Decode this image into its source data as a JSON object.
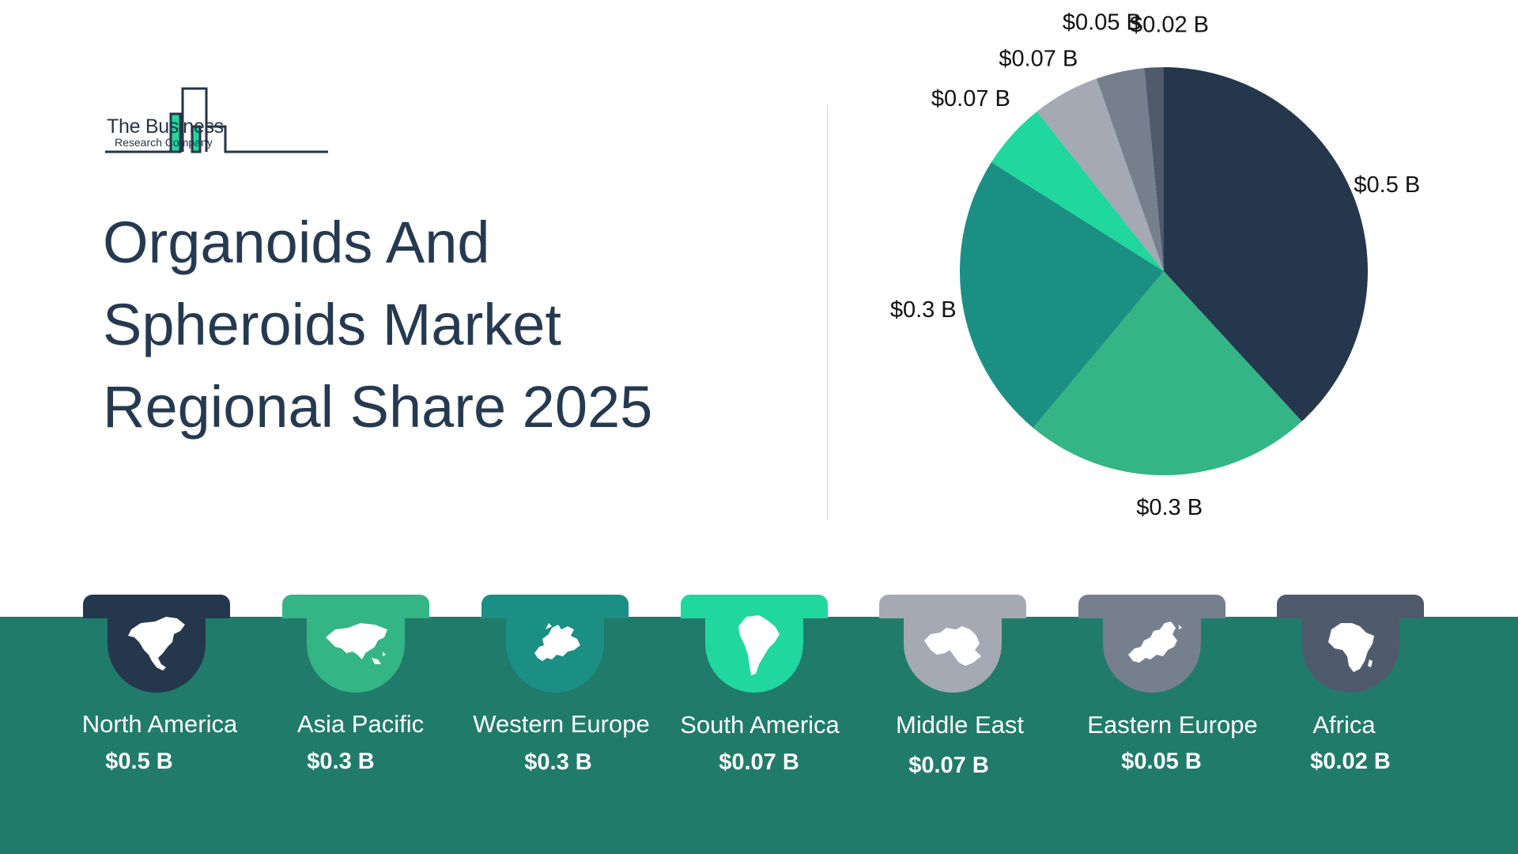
{
  "logo": {
    "line1": "The Business",
    "line2": "Research Company"
  },
  "title_lines": [
    "Organoids And",
    "Spheroids Market",
    "Regional Share 2025"
  ],
  "chart_data": {
    "type": "pie",
    "title": "Organoids And Spheroids Market Regional Share 2025",
    "categories": [
      "North America",
      "Asia Pacific",
      "Western Europe",
      "South America",
      "Middle East",
      "Eastern Europe",
      "Africa"
    ],
    "values": [
      0.5,
      0.3,
      0.3,
      0.07,
      0.07,
      0.05,
      0.02
    ],
    "labels": [
      "$0.5 B",
      "$0.3 B",
      "$0.3 B",
      "$0.07 B",
      "$0.07 B",
      "$0.05 B",
      "$0.02 B"
    ],
    "colors": [
      "#24374d",
      "#34b586",
      "#1b8f84",
      "#20d79d",
      "#a4a9b3",
      "#767f8d",
      "#4f5b6d"
    ],
    "start_angle_deg": 0,
    "direction": "clockwise",
    "legend": "none"
  },
  "regions": [
    {
      "name": "North America",
      "value": "$0.5 B",
      "color": "#24374d",
      "icon": "north-america-map-icon"
    },
    {
      "name": "Asia Pacific",
      "value": "$0.3 B",
      "color": "#34b586",
      "icon": "asia-map-icon"
    },
    {
      "name": "Western Europe",
      "value": "$0.3 B",
      "color": "#1b8f84",
      "icon": "western-europe-map-icon"
    },
    {
      "name": "South America",
      "value": "$0.07 B",
      "color": "#20d79d",
      "icon": "south-america-map-icon"
    },
    {
      "name": "Middle East",
      "value": "$0.07 B",
      "color": "#a4a9b3",
      "icon": "middle-east-map-icon"
    },
    {
      "name": "Eastern Europe",
      "value": "$0.05 B",
      "color": "#767f8d",
      "icon": "eastern-europe-map-icon"
    },
    {
      "name": "Africa",
      "value": "$0.02 B",
      "color": "#4f5b6d",
      "icon": "africa-map-icon"
    }
  ],
  "band_color": "#217b6b"
}
